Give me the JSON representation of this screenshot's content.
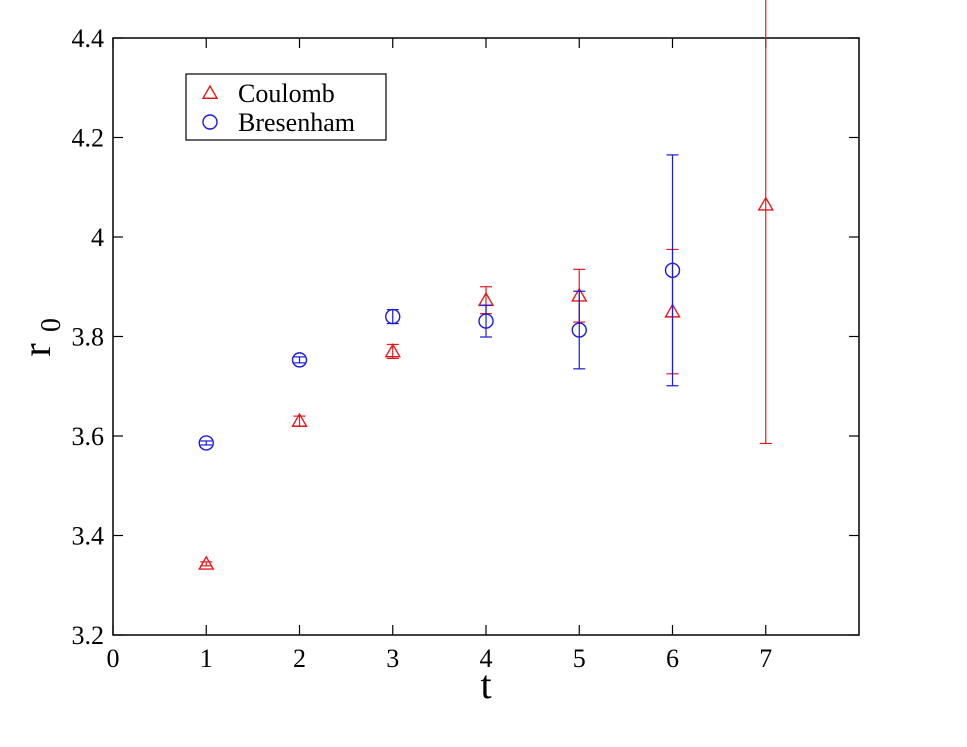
{
  "chart_data": {
    "type": "scatter",
    "title": "",
    "xlabel": "t",
    "ylabel_main": "r",
    "ylabel_sub": "0",
    "xlim": [
      0,
      8
    ],
    "ylim": [
      3.2,
      4.4
    ],
    "xticks": [
      0,
      1,
      2,
      3,
      4,
      5,
      6,
      7
    ],
    "xtick_labels": [
      "0",
      "1",
      "2",
      "3",
      "4",
      "5",
      "6",
      "7"
    ],
    "yticks": [
      3.2,
      3.4,
      3.6,
      3.8,
      4.0,
      4.2,
      4.4
    ],
    "ytick_labels": [
      "3.2",
      "3.4",
      "3.6",
      "3.8",
      "4",
      "4.2",
      "4.4"
    ],
    "grid": false,
    "legend_position": "top-left",
    "series": [
      {
        "name": "Coulomb",
        "marker": "triangle",
        "color": "#e31a1c",
        "x": [
          1,
          2,
          3,
          4,
          5,
          6,
          7
        ],
        "y": [
          3.343,
          3.63,
          3.77,
          3.873,
          3.882,
          3.85,
          4.065
        ],
        "err": [
          0.004,
          0.01,
          0.014,
          0.027,
          0.053,
          0.125,
          0.48
        ]
      },
      {
        "name": "Bresenham",
        "marker": "circle",
        "color": "#1a1adb",
        "x": [
          1,
          3,
          2,
          4,
          5,
          6
        ],
        "y": [
          3.586,
          3.84,
          3.753,
          3.831,
          3.813,
          3.933
        ],
        "err": [
          0.004,
          0.014,
          0.006,
          0.032,
          0.078,
          0.232
        ]
      }
    ]
  }
}
